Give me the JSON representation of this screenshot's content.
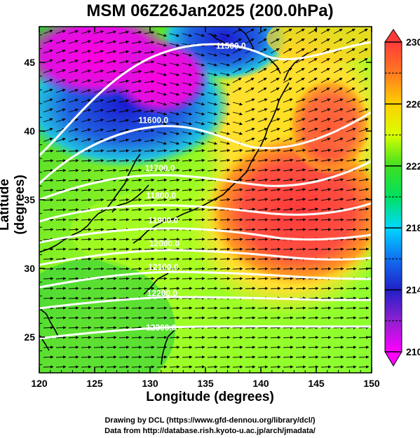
{
  "title": "MSM 06Z26Jan2025 (200.0hPa)",
  "xlabel": "Longitude (degrees)",
  "ylabel": "Latitude  (degrees)",
  "credits": {
    "line1": "Drawing by DCL (https://www.gfd-dennou.org/library/dcl/)",
    "line2": "Data from http://database.rish.kyoto-u.ac.jp/arch/jmadata/"
  },
  "chart_data": {
    "type": "heatmap",
    "x_range": [
      120,
      150
    ],
    "y_range": [
      22.4,
      47.6
    ],
    "x_ticks": [
      120,
      125,
      130,
      135,
      140,
      145,
      150
    ],
    "y_ticks": [
      25,
      30,
      35,
      40,
      45
    ],
    "colorbar": {
      "min": 210,
      "max": 230,
      "ticks": [
        210,
        214,
        218,
        222,
        226,
        230
      ],
      "colors": [
        "#ff00ff",
        "#2020c8",
        "#00d8ff",
        "#00e040",
        "#ffff00",
        "#ff9a00",
        "#ff3030"
      ]
    },
    "contour_labels": [
      {
        "text": "11500.0",
        "lon": 137.3,
        "lat": 46.2
      },
      {
        "text": "11600.0",
        "lon": 130.3,
        "lat": 40.8
      },
      {
        "text": "11700.0",
        "lon": 130.9,
        "lat": 37.3
      },
      {
        "text": "11800.0",
        "lon": 131.0,
        "lat": 35.3
      },
      {
        "text": "11900.0",
        "lon": 131.2,
        "lat": 33.5
      },
      {
        "text": "12000.0",
        "lon": 131.3,
        "lat": 31.8
      },
      {
        "text": "12100.0",
        "lon": 131.2,
        "lat": 30.1
      },
      {
        "text": "12200.0",
        "lon": 131.1,
        "lat": 28.2
      },
      {
        "text": "12300.0",
        "lon": 131.0,
        "lat": 25.7
      }
    ]
  }
}
